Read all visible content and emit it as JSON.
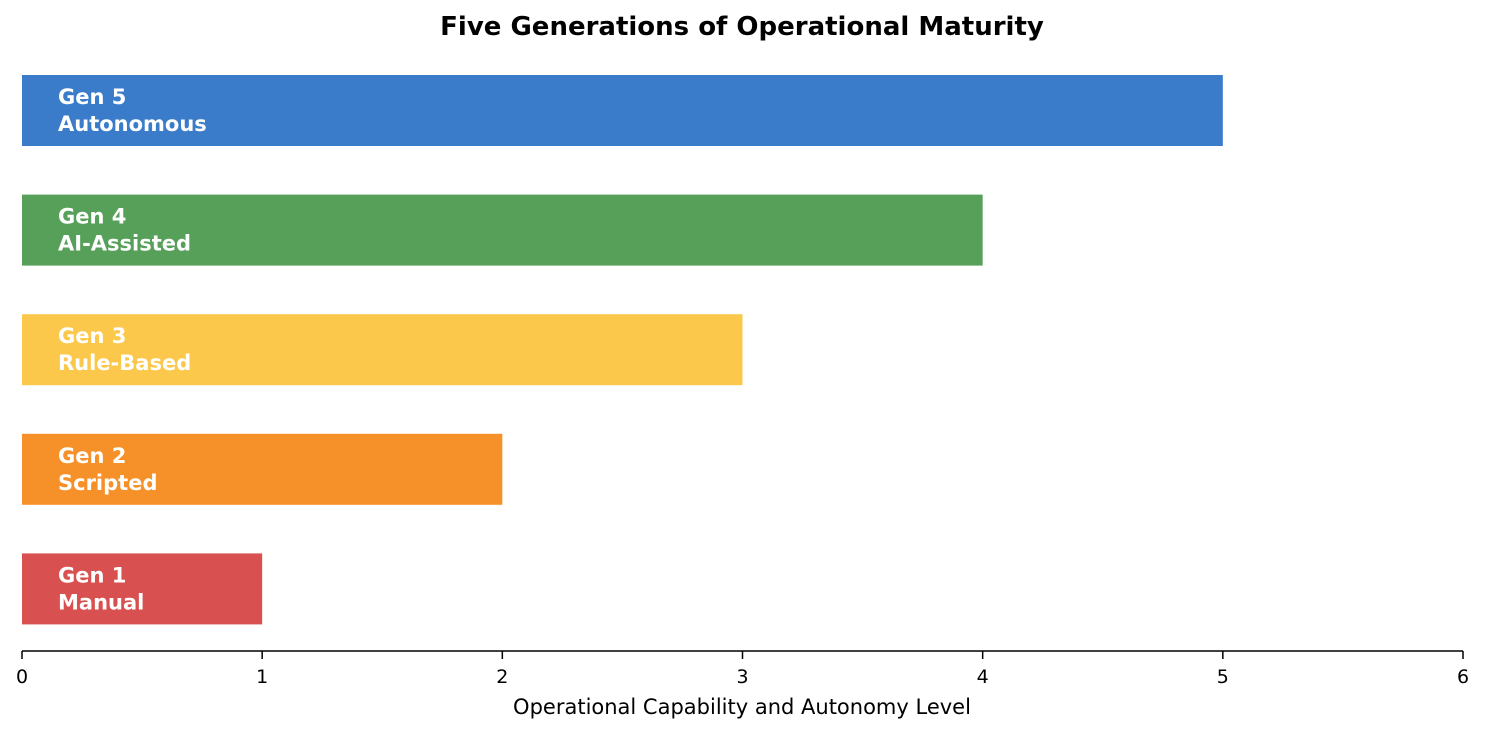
{
  "chart_data": {
    "type": "bar",
    "orientation": "horizontal",
    "title": "Five Generations of Operational Maturity",
    "xlabel": "Operational Capability and Autonomy Level",
    "ylabel": "",
    "xlim": [
      0,
      6
    ],
    "xticks": [
      0,
      1,
      2,
      3,
      4,
      5,
      6
    ],
    "grid": false,
    "legend": "none",
    "bars": [
      {
        "generation": "Gen 5",
        "name": "Autonomous",
        "value": 5,
        "color": "#3a7cc9"
      },
      {
        "generation": "Gen 4",
        "name": "AI-Assisted",
        "value": 4,
        "color": "#57a05a"
      },
      {
        "generation": "Gen 3",
        "name": "Rule-Based",
        "value": 3,
        "color": "#fbc84b"
      },
      {
        "generation": "Gen 2",
        "name": "Scripted",
        "value": 2,
        "color": "#f69028"
      },
      {
        "generation": "Gen 1",
        "name": "Manual",
        "value": 1,
        "color": "#d95050"
      }
    ]
  }
}
